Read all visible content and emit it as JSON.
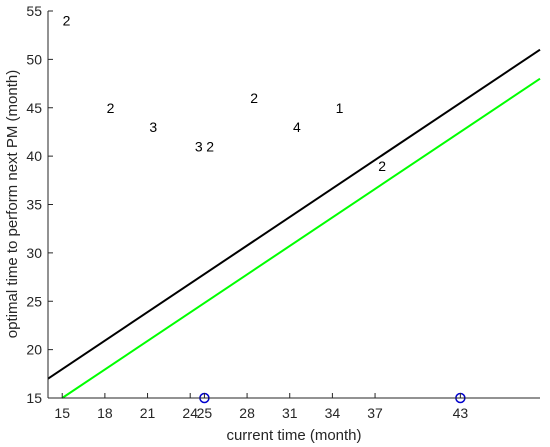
{
  "chart_data": {
    "type": "scatter",
    "title": "",
    "xlabel": "current time (month)",
    "ylabel": "optimal time to perform next PM (month)",
    "xlim": [
      14,
      48.6
    ],
    "ylim": [
      15,
      55
    ],
    "grid": false,
    "x_ticks": [
      15,
      18,
      21,
      24,
      25,
      28,
      31,
      34,
      37,
      43
    ],
    "y_ticks": [
      15,
      20,
      25,
      30,
      35,
      40,
      45,
      50,
      55
    ],
    "series": [
      {
        "kind": "line",
        "color": "#000000",
        "x": [
          14,
          48.6
        ],
        "y": [
          17,
          51
        ]
      },
      {
        "kind": "line",
        "color": "#00ff00",
        "x": [
          15,
          48.6
        ],
        "y": [
          15,
          48
        ]
      },
      {
        "kind": "markers",
        "marker": "circle-open",
        "color": "#0000cc",
        "x": [
          25,
          43
        ],
        "y": [
          15,
          15
        ]
      }
    ],
    "point_labels": [
      {
        "x": 15.3,
        "y": 54,
        "text": "2"
      },
      {
        "x": 18.4,
        "y": 45,
        "text": "2"
      },
      {
        "x": 21.4,
        "y": 43,
        "text": "3"
      },
      {
        "x": 24.6,
        "y": 41,
        "text": "3"
      },
      {
        "x": 25.4,
        "y": 41,
        "text": "2"
      },
      {
        "x": 28.5,
        "y": 46,
        "text": "2"
      },
      {
        "x": 31.5,
        "y": 43,
        "text": "4"
      },
      {
        "x": 34.5,
        "y": 45,
        "text": "1"
      },
      {
        "x": 37.5,
        "y": 39,
        "text": "2"
      }
    ],
    "colors": {
      "axis": "#262626",
      "background": "#ffffff"
    }
  }
}
